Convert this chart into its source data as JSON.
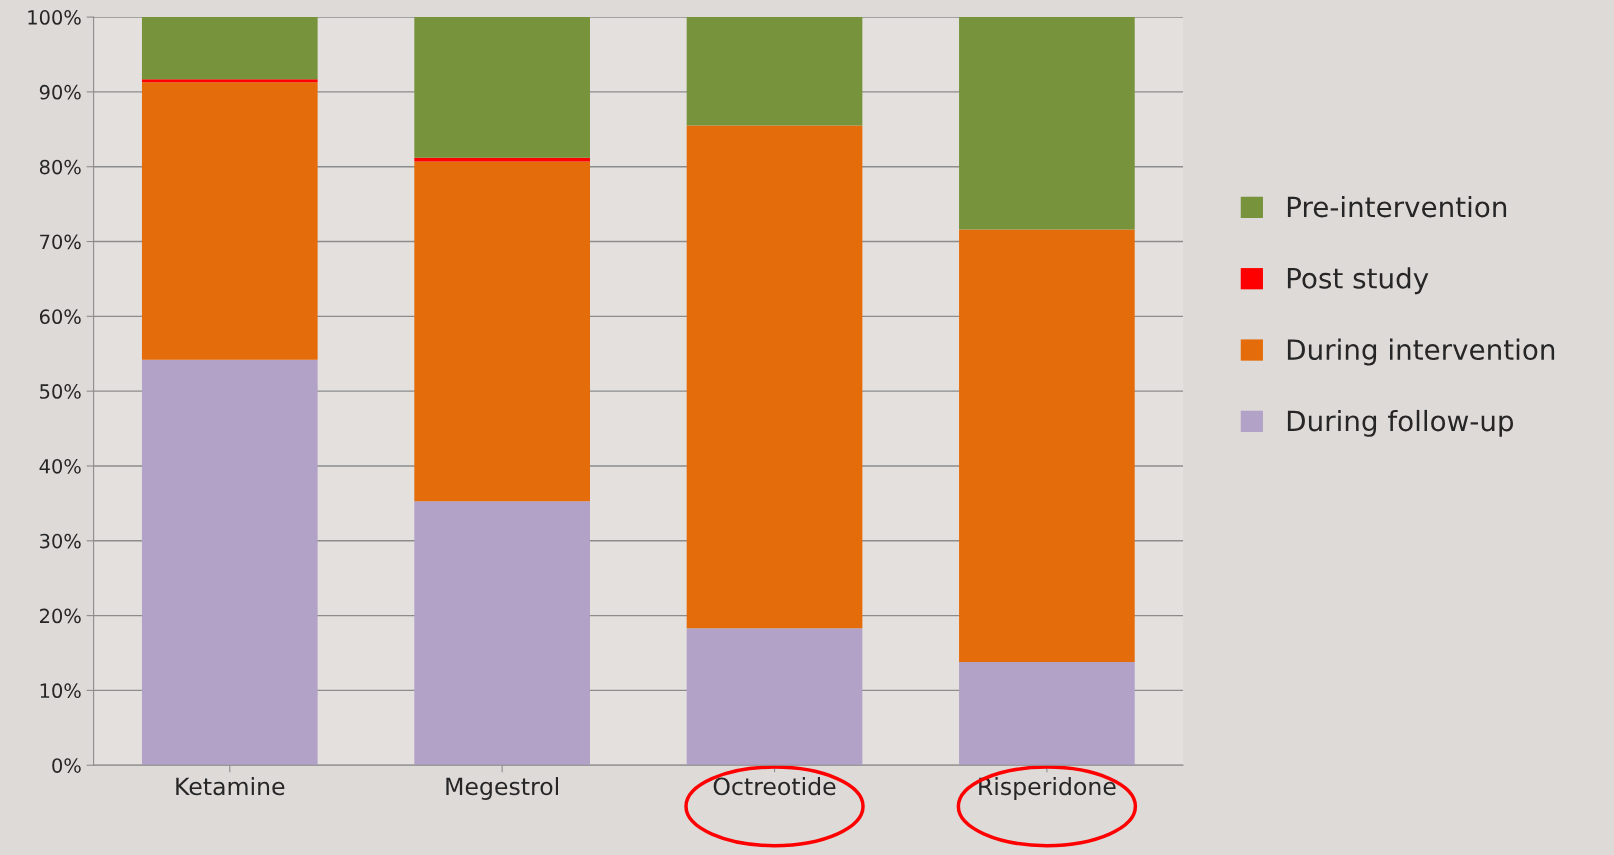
{
  "chart_data": {
    "type": "bar",
    "stacked": true,
    "categories": [
      "Ketamine",
      "Megestrol",
      "Octreotide",
      "Risperidone"
    ],
    "series": [
      {
        "name": "During follow-up",
        "color": "#b2a2c7",
        "values": [
          54.2,
          35.3,
          18.3,
          13.8
        ]
      },
      {
        "name": "During intervention",
        "color": "#e46c0a",
        "values": [
          37.1,
          45.4,
          67.2,
          57.8
        ]
      },
      {
        "name": "Post study",
        "color": "#ff0000",
        "values": [
          0.4,
          0.5,
          0,
          0
        ]
      },
      {
        "name": "Pre-intervention",
        "color": "#77933c",
        "values": [
          8.3,
          18.8,
          14.5,
          28.4
        ]
      }
    ],
    "ylim": [
      0,
      100
    ],
    "yticks": [
      {
        "value": 0,
        "label": "0%"
      },
      {
        "value": 10,
        "label": "10%"
      },
      {
        "value": 20,
        "label": "20%"
      },
      {
        "value": 30,
        "label": "30%"
      },
      {
        "value": 40,
        "label": "40%"
      },
      {
        "value": 50,
        "label": "50%"
      },
      {
        "value": 60,
        "label": "60%"
      },
      {
        "value": 70,
        "label": "70%"
      },
      {
        "value": 80,
        "label": "80%"
      },
      {
        "value": 90,
        "label": "90%"
      },
      {
        "value": 100,
        "label": "100%"
      }
    ],
    "grid": "y",
    "legend": "right"
  }
}
